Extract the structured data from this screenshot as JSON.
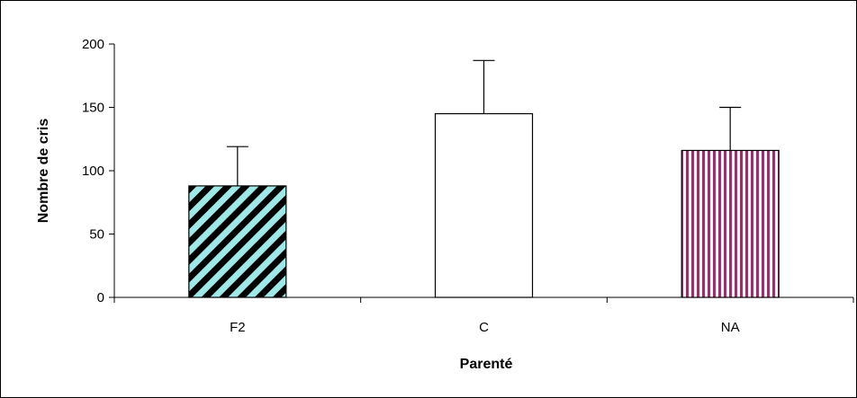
{
  "chart_data": {
    "type": "bar",
    "title": "",
    "xlabel": "Parenté",
    "ylabel": "Nombre de cris",
    "categories": [
      "F2",
      "C",
      "NA"
    ],
    "series": [
      {
        "values": [
          88,
          145,
          116
        ],
        "error_plus": [
          31,
          42,
          34
        ],
        "patterns": [
          "diagonal-stripes-black-cyan",
          "solid-white",
          "vertical-stripes-purple-white"
        ]
      }
    ],
    "ylim": [
      0,
      200
    ],
    "yticks": [
      0,
      50,
      100,
      150,
      200
    ],
    "ytick_labels": [
      "0",
      "50",
      "100",
      "150",
      "200"
    ],
    "grid": false,
    "legend": "none",
    "colors": {
      "axis": "#000000",
      "f2_stripe_dark": "#000000",
      "f2_stripe_light": "#9ee8e8",
      "c_fill": "#ffffff",
      "na_stripe": "#993366",
      "na_stripe_light": "#ffffff"
    }
  }
}
